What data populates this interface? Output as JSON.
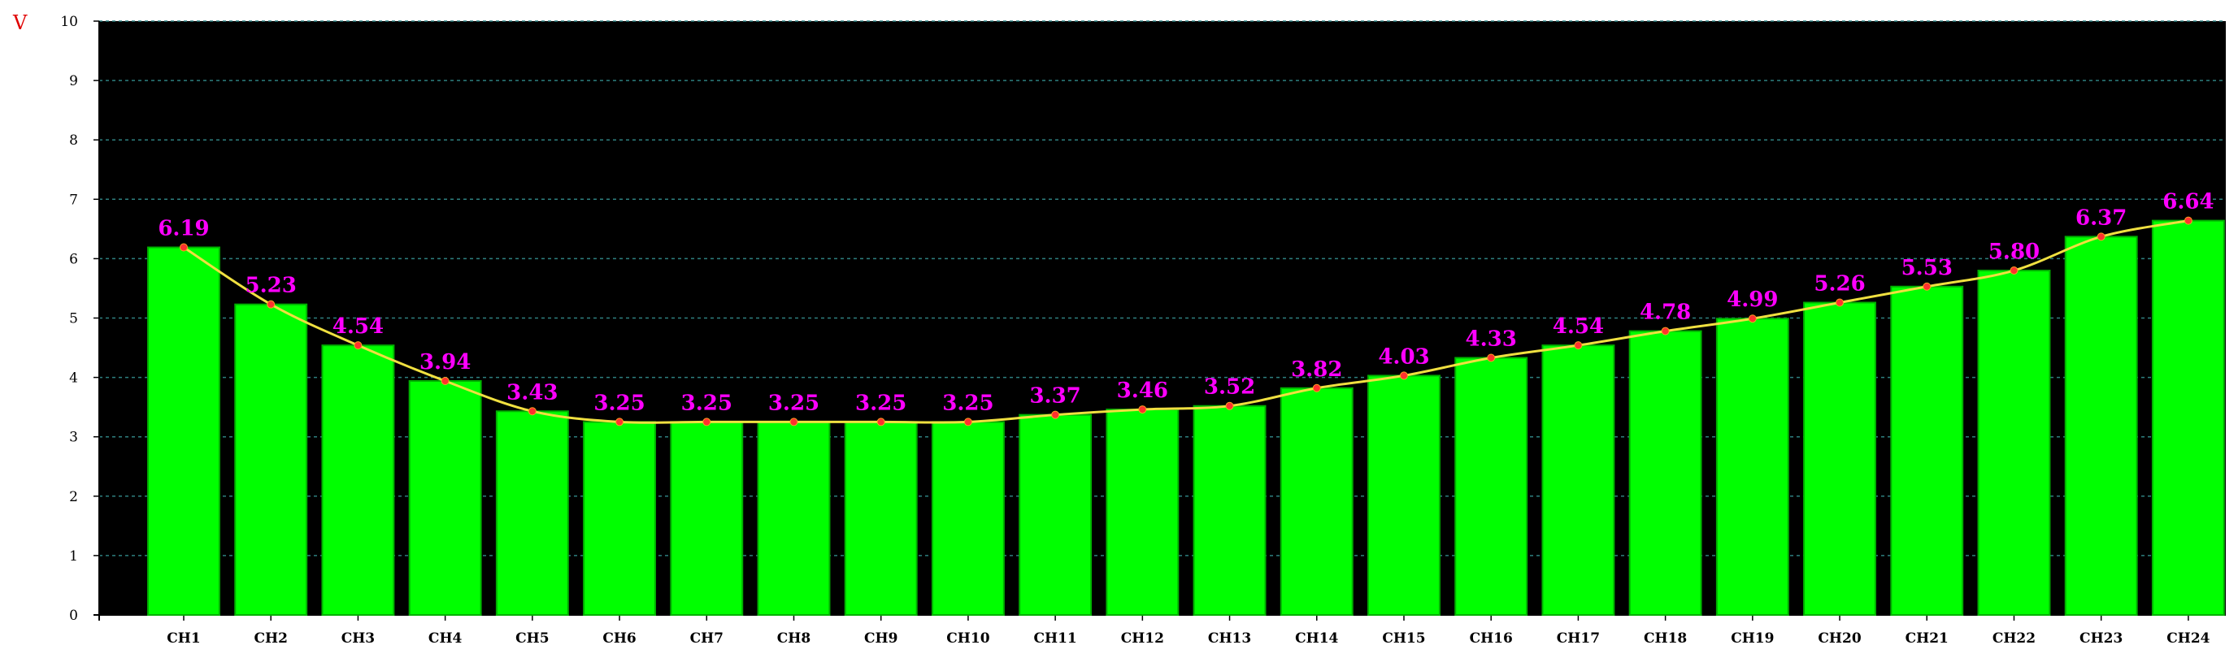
{
  "chart_data": {
    "type": "bar",
    "unit": "V",
    "categories": [
      "CH1",
      "CH2",
      "CH3",
      "CH4",
      "CH5",
      "CH6",
      "CH7",
      "CH8",
      "CH9",
      "CH10",
      "CH11",
      "CH12",
      "CH13",
      "CH14",
      "CH15",
      "CH16",
      "CH17",
      "CH18",
      "CH19",
      "CH20",
      "CH21",
      "CH22",
      "CH23",
      "CH24"
    ],
    "values": [
      6.19,
      5.23,
      4.54,
      3.94,
      3.43,
      3.25,
      3.25,
      3.25,
      3.25,
      3.25,
      3.37,
      3.46,
      3.52,
      3.82,
      4.03,
      4.33,
      4.54,
      4.78,
      4.99,
      5.26,
      5.53,
      5.8,
      6.37,
      6.64
    ],
    "data_labels": [
      "6.19",
      "5.23",
      "4.54",
      "3.94",
      "3.43",
      "3.25",
      "3.25",
      "3.25",
      "3.25",
      "3.25",
      "3.37",
      "3.46",
      "3.52",
      "3.82",
      "4.03",
      "4.33",
      "4.54",
      "4.78",
      "4.99",
      "5.26",
      "5.53",
      "5.80",
      "6.37",
      "6.64"
    ],
    "ylim": [
      0,
      10
    ],
    "yticks": [
      "0",
      "1",
      "2",
      "3",
      "4",
      "5",
      "6",
      "7",
      "8",
      "9",
      "10"
    ],
    "overlay": "smoothed line through bar tops with point markers",
    "grid": "horizontal dashed",
    "colors": {
      "plot_background": "#000000",
      "bar": "#00ff00",
      "bar_edge": "#00b000",
      "line": "#f0e040",
      "marker": "#ff3030",
      "data_label": "#ff00ff",
      "grid": "#2e8080",
      "unit_label": "#e00000"
    }
  }
}
